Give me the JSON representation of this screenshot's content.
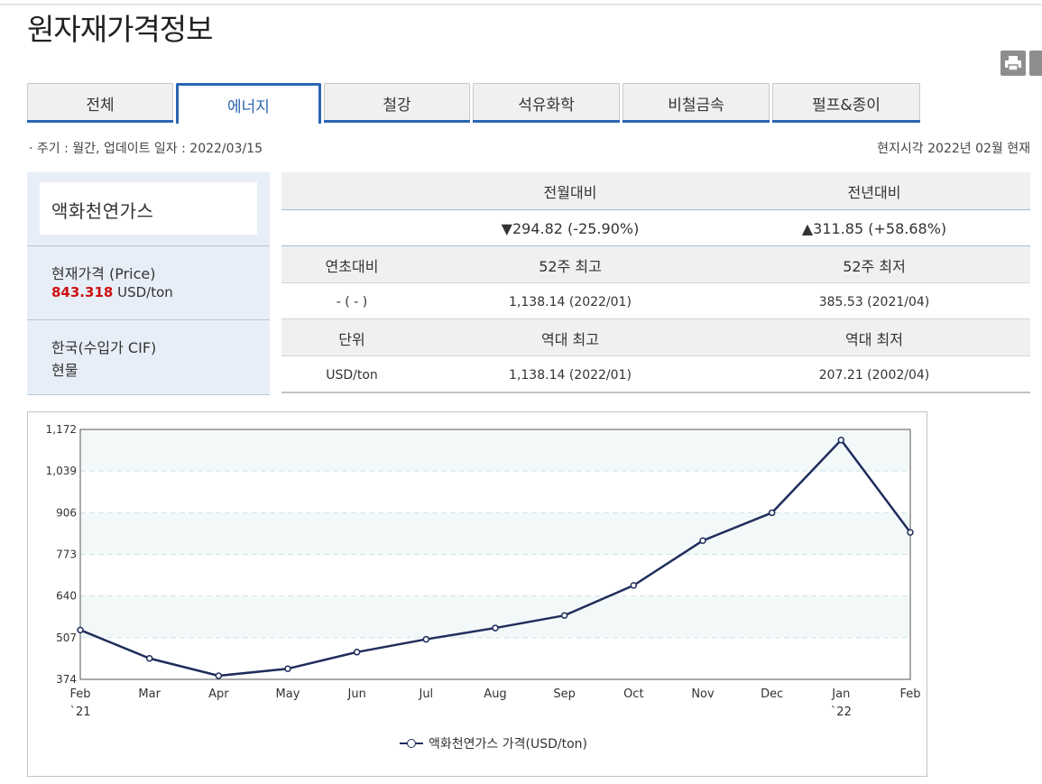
{
  "page": {
    "title": "원자재가격정보"
  },
  "toolbar": {
    "print_icon": "printer-icon",
    "share_icon": "share-icon"
  },
  "tabs": [
    {
      "label": "전체",
      "active": false
    },
    {
      "label": "에너지",
      "active": true
    },
    {
      "label": "철강",
      "active": false
    },
    {
      "label": "석유화학",
      "active": false
    },
    {
      "label": "비철금속",
      "active": false
    },
    {
      "label": "펄프&종이",
      "active": false
    }
  ],
  "meta": {
    "cycle": "· 주기 : 월간, 업데이트 일자 : 2022/03/15",
    "local_time": "현지시각 2022년 02월 현재"
  },
  "commodity": {
    "name": "액화천연가스",
    "price_label": "현재가격 (Price)",
    "price_value": "843.318",
    "price_unit": "USD/ton",
    "market_line1": "한국(수입가 CIF)",
    "market_line2": "현물"
  },
  "stats": {
    "mom_header": "전월대비",
    "yoy_header": "전년대비",
    "mom_value": "▼294.82 (-25.90%)",
    "yoy_value": "▲311.85 (+58.68%)",
    "ytd_header": "연초대비",
    "high52_header": "52주 최고",
    "low52_header": "52주 최저",
    "ytd_value": "- ( - )",
    "high52_value": "1,138.14 (2022/01)",
    "low52_value": "385.53 (2021/04)",
    "unit_header": "단위",
    "ath_header": "역대 최고",
    "atl_header": "역대 최저",
    "unit_value": "USD/ton",
    "ath_value": "1,138.14 (2022/01)",
    "atl_value": "207.21 (2002/04)",
    "down_color": "#2a6bd0",
    "up_color": "#dd1111"
  },
  "chart_data": {
    "type": "line",
    "title": "",
    "xlabel": "",
    "ylabel": "",
    "categories": [
      "Feb",
      "Mar",
      "Apr",
      "May",
      "Jun",
      "Jul",
      "Aug",
      "Sep",
      "Oct",
      "Nov",
      "Dec",
      "Jan",
      "Feb"
    ],
    "year_labels": {
      "0": "`21",
      "11": "`22"
    },
    "series": [
      {
        "name": "액화천연가스 가격(USD/ton)",
        "color": "#1f2d5c",
        "values": [
          531.47,
          441,
          385.53,
          408,
          461,
          502,
          538,
          578,
          674,
          817,
          906,
          1138.14,
          843.318
        ]
      }
    ],
    "y_ticks": [
      374,
      507,
      640,
      773,
      906,
      1039,
      1172
    ],
    "y_tick_labels": [
      "374",
      "507",
      "640",
      "773",
      "906",
      "1,039",
      "1,172"
    ],
    "ylim": [
      374,
      1172
    ],
    "grid": true,
    "legend_position": "bottom-center",
    "legend_label": "액화천연가스 가격(USD/ton)"
  }
}
